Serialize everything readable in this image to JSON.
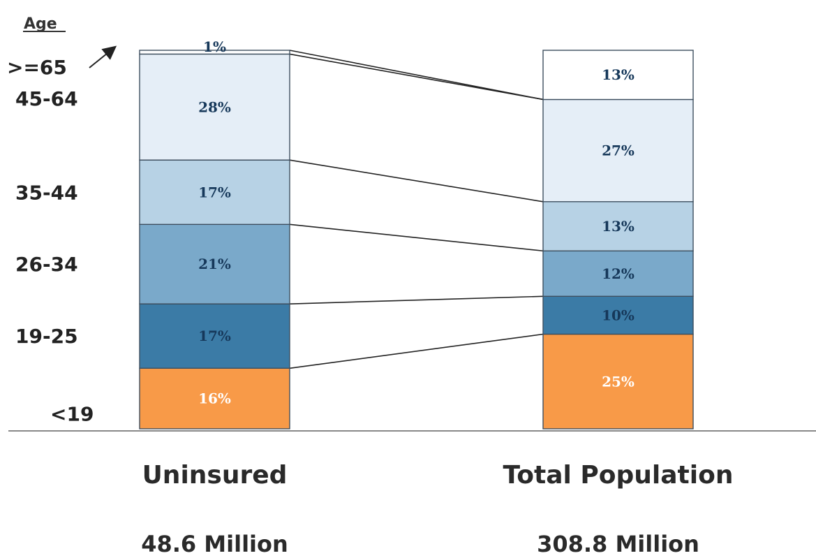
{
  "chart_data": {
    "type": "bar",
    "stacked": true,
    "normalized": true,
    "legend_title": "Age",
    "age_groups": [
      "<19",
      "19-25",
      "26-34",
      "35-44",
      "45-64",
      ">=65"
    ],
    "colors": [
      "#f89a48",
      "#3b7ba6",
      "#7aa9ca",
      "#b7d2e5",
      "#e5eef7",
      "#ffffff"
    ],
    "label_colors": [
      "#ffffff",
      "#16385a",
      "#16385a",
      "#16385a",
      "#16385a",
      "#16385a"
    ],
    "categories": [
      "Uninsured",
      "Total Population"
    ],
    "totals": [
      "48.6 Million",
      "308.8 Million"
    ],
    "series": [
      {
        "name": "<19",
        "values": [
          16,
          25
        ],
        "labels": [
          "16%",
          "25%"
        ]
      },
      {
        "name": "19-25",
        "values": [
          17,
          10
        ],
        "labels": [
          "17%",
          "10%"
        ]
      },
      {
        "name": "26-34",
        "values": [
          21,
          12
        ],
        "labels": [
          "21%",
          "12%"
        ]
      },
      {
        "name": "35-44",
        "values": [
          17,
          13
        ],
        "labels": [
          "17%",
          "13%"
        ]
      },
      {
        "name": "45-64",
        "values": [
          28,
          27
        ],
        "labels": [
          "28%",
          "27%"
        ]
      },
      {
        "name": ">=65",
        "values": [
          1,
          13
        ],
        "labels": [
          "1%",
          "13%"
        ]
      }
    ],
    "ylim": [
      0,
      100
    ],
    "connector_lines": true
  }
}
